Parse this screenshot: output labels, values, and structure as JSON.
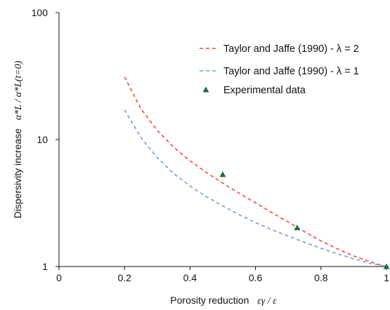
{
  "chart_data": {
    "type": "line",
    "x_axis": {
      "label_main": "Porosity reduction",
      "label_math": "εγ / ε",
      "range": [
        0,
        1
      ],
      "ticks": [
        0,
        0.2,
        0.4,
        0.6,
        0.8,
        1
      ],
      "tick_labels": [
        "0",
        "0.2",
        "0.4",
        "0.6",
        "0.8",
        "1"
      ]
    },
    "y_axis": {
      "label_main": "Dispersivity increase",
      "label_math": "α*L / α*L(t=0)",
      "scale": "log",
      "range": [
        1,
        100
      ],
      "ticks": [
        1,
        10,
        100
      ],
      "tick_labels": [
        "1",
        "10",
        "100"
      ]
    },
    "grid": false,
    "legend_position": "top-right",
    "series": [
      {
        "name": "Taylor and Jaffe (1990) - λ = 2",
        "kind": "dashed-line",
        "color": "#ef4a40",
        "x": [
          0.2,
          0.25,
          0.3,
          0.35,
          0.4,
          0.45,
          0.5,
          0.55,
          0.6,
          0.65,
          0.7,
          0.75,
          0.8,
          0.85,
          0.9,
          0.95,
          1.0
        ],
        "y": [
          31.2,
          17.5,
          11.8,
          8.7,
          6.8,
          5.5,
          4.54,
          3.78,
          3.18,
          2.66,
          2.24,
          1.88,
          1.59,
          1.38,
          1.21,
          1.09,
          1.0
        ]
      },
      {
        "name": "Taylor and Jaffe (1990) - λ = 1",
        "kind": "dashed-line",
        "color": "#6f9fd8",
        "x": [
          0.2,
          0.25,
          0.3,
          0.35,
          0.4,
          0.45,
          0.5,
          0.55,
          0.6,
          0.65,
          0.7,
          0.75,
          0.8,
          0.85,
          0.9,
          0.95,
          1.0
        ],
        "y": [
          17.2,
          10.4,
          7.2,
          5.4,
          4.3,
          3.55,
          3.0,
          2.56,
          2.22,
          1.95,
          1.74,
          1.55,
          1.39,
          1.26,
          1.15,
          1.06,
          1.0
        ]
      },
      {
        "name": "Experimental data",
        "kind": "markers",
        "marker": "triangle",
        "color": "#1b6e3e",
        "x": [
          0.5,
          0.727,
          1.0
        ],
        "y": [
          5.3,
          2.02,
          1.0
        ]
      }
    ]
  }
}
